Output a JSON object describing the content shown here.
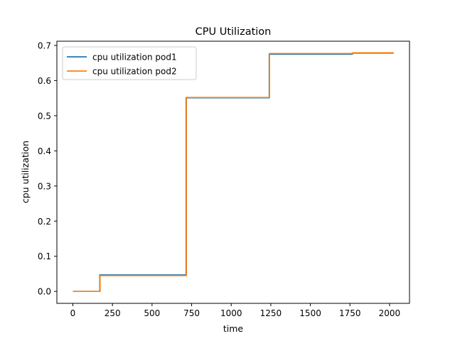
{
  "chart_data": {
    "type": "line",
    "title": "CPU Utilization",
    "xlabel": "time",
    "ylabel": "cpu utilization",
    "xlim": [
      -101,
      2126
    ],
    "ylim": [
      -0.034,
      0.712
    ],
    "xticks": [
      0,
      250,
      500,
      750,
      1000,
      1250,
      1500,
      1750,
      2000
    ],
    "xtick_labels": [
      "0",
      "250",
      "500",
      "750",
      "1000",
      "1250",
      "1500",
      "1750",
      "2000"
    ],
    "yticks": [
      0.0,
      0.1,
      0.2,
      0.3,
      0.4,
      0.5,
      0.6,
      0.7
    ],
    "ytick_labels": [
      "0.0",
      "0.1",
      "0.2",
      "0.3",
      "0.4",
      "0.5",
      "0.6",
      "0.7"
    ],
    "grid": false,
    "legend_position": "top-left",
    "series": [
      {
        "name": "cpu utilization pod1",
        "color": "#1f77b4",
        "points": [
          [
            0,
            0.0
          ],
          [
            170,
            0.0
          ],
          [
            170,
            0.047
          ],
          [
            715,
            0.047
          ],
          [
            715,
            0.551
          ],
          [
            1240,
            0.551
          ],
          [
            1240,
            0.675
          ],
          [
            1765,
            0.675
          ],
          [
            1765,
            0.678
          ],
          [
            2025,
            0.678
          ]
        ]
      },
      {
        "name": "cpu utilization pod2",
        "color": "#ff7f0e",
        "points": [
          [
            0,
            0.0
          ],
          [
            172,
            0.0
          ],
          [
            172,
            0.045
          ],
          [
            717,
            0.045
          ],
          [
            717,
            0.552
          ],
          [
            1242,
            0.552
          ],
          [
            1242,
            0.677
          ],
          [
            1767,
            0.677
          ],
          [
            1767,
            0.679
          ],
          [
            2027,
            0.679
          ]
        ]
      }
    ]
  }
}
